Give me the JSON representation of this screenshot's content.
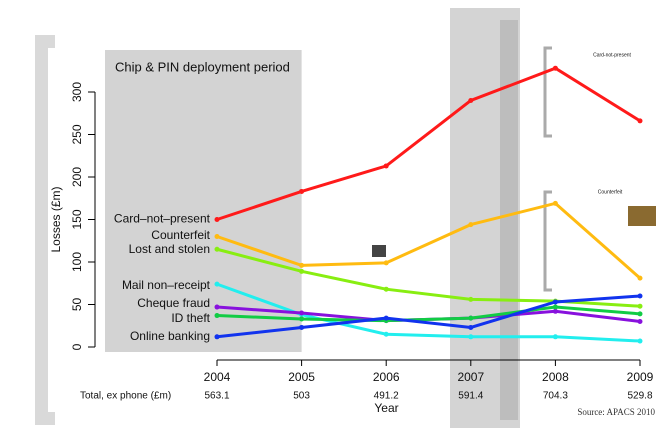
{
  "chart_data": {
    "type": "line",
    "shaded_region": {
      "label": "Chip & PIN deployment period",
      "end": 2005
    },
    "ylabel": "Losses (£m)",
    "xlabel": "Year",
    "x": [
      2004,
      2005,
      2006,
      2007,
      2008,
      2009
    ],
    "xlim": [
      2004,
      2009
    ],
    "xticks": [
      2004,
      2005,
      2006,
      2007,
      2008,
      2009
    ],
    "ylim": [
      0,
      300
    ],
    "yticks": [
      0,
      50,
      100,
      150,
      200,
      250,
      300
    ],
    "series": [
      {
        "name": "Card–not–present",
        "color": "#ff1a1a",
        "values": [
          150,
          183,
          213,
          290,
          328,
          266
        ]
      },
      {
        "name": "Counterfeit",
        "color": "#ffbb11",
        "values": [
          130,
          96,
          99,
          144,
          169,
          81
        ]
      },
      {
        "name": "Lost and stolen",
        "color": "#88ee11",
        "values": [
          115,
          89,
          68,
          56,
          54,
          48
        ]
      },
      {
        "name": "Mail non–receipt",
        "color": "#22eeee",
        "values": [
          74,
          38,
          15,
          12,
          12,
          7
        ]
      },
      {
        "name": "Cheque fraud",
        "color": "#8811dd",
        "values": [
          47,
          40,
          31,
          34,
          42,
          30
        ]
      },
      {
        "name": "ID theft",
        "color": "#11cc44",
        "values": [
          37,
          33,
          31,
          34,
          47,
          39
        ]
      },
      {
        "name": "Online banking",
        "color": "#1133ee",
        "values": [
          12,
          23,
          34,
          23,
          53,
          60
        ]
      }
    ],
    "totals": {
      "label": "Total, ex phone (£m)",
      "values": [
        563.1,
        503,
        491.2,
        591.4,
        704.3,
        529.8
      ]
    },
    "source": "Source: APACS 2010",
    "insets": [
      "Card-not-present",
      "Counterfeit"
    ]
  }
}
